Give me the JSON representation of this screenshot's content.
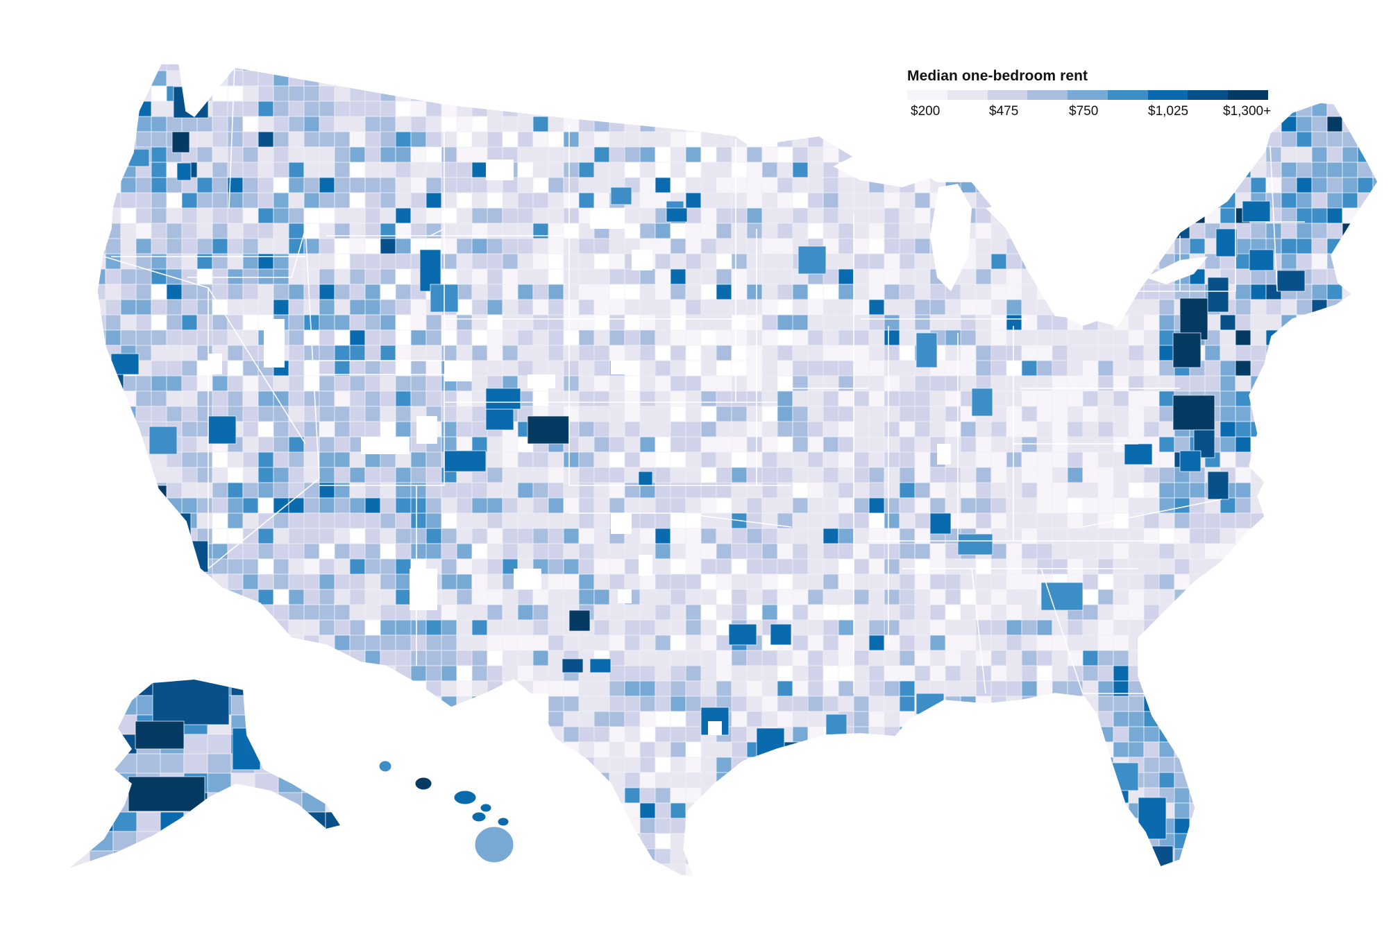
{
  "legend": {
    "title": "Median one-bedroom rent",
    "colors": [
      "#f7f4fa",
      "#e8e6f1",
      "#cfd2e8",
      "#a9bedf",
      "#77a9d4",
      "#3d8ec6",
      "#0a6aae",
      "#07508a",
      "#053a63"
    ],
    "ticks": [
      "$200",
      "$475",
      "$750",
      "$1,025",
      "$1,300+"
    ]
  },
  "palette": {
    "state_border": "#ffffff",
    "county_border": "#eef0f7",
    "empty": "#ffffff"
  }
}
